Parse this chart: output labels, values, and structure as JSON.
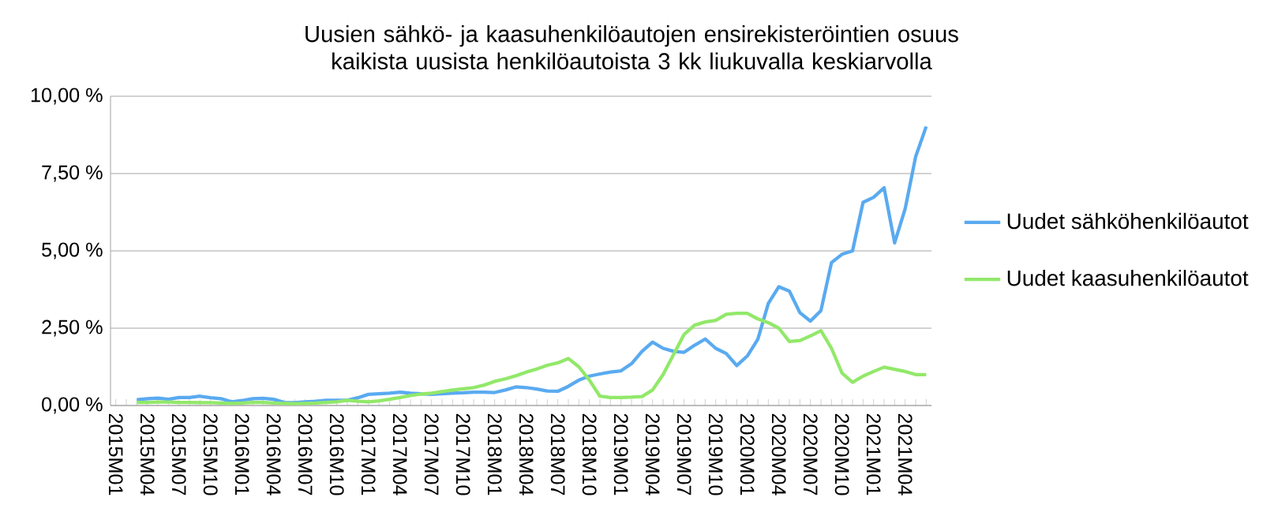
{
  "chart_data": {
    "type": "line",
    "title": "Uusien sähkö- ja kaasuhenkilöautojen ensirekisteröintien osuus kaikista uusista henkilöautoista 3 kk liukuvalla keskiarvolla",
    "categories": [
      "2015M01",
      null,
      null,
      "2015M04",
      null,
      null,
      "2015M07",
      null,
      null,
      "2015M10",
      null,
      null,
      "2016M01",
      null,
      null,
      "2016M04",
      null,
      null,
      "2016M07",
      null,
      null,
      "2016M10",
      null,
      null,
      "2017M01",
      null,
      null,
      "2017M04",
      null,
      null,
      "2017M07",
      null,
      null,
      "2017M10",
      null,
      null,
      "2018M01",
      null,
      null,
      "2018M04",
      null,
      null,
      "2018M07",
      null,
      null,
      "2018M10",
      null,
      null,
      "2019M01",
      null,
      null,
      "2019M04",
      null,
      null,
      "2019M07",
      null,
      null,
      "2019M10",
      null,
      null,
      "2020M01",
      null,
      null,
      "2020M04",
      null,
      null,
      "2020M07",
      null,
      null,
      "2020M10",
      null,
      null,
      "2021M01",
      null,
      null,
      "2021M04",
      null,
      null
    ],
    "series": [
      {
        "name": "Uudet sähköhenkilöautot",
        "color": "#5aaaf0",
        "values": [
          null,
          null,
          0.19,
          0.22,
          0.24,
          0.2,
          0.26,
          0.26,
          0.3,
          0.25,
          0.22,
          0.12,
          0.16,
          0.22,
          0.23,
          0.2,
          0.1,
          0.09,
          0.12,
          0.14,
          0.17,
          0.17,
          0.17,
          0.25,
          0.36,
          0.38,
          0.4,
          0.43,
          0.4,
          0.38,
          0.36,
          0.38,
          0.4,
          0.41,
          0.43,
          0.43,
          0.42,
          0.5,
          0.6,
          0.58,
          0.53,
          0.47,
          0.46,
          0.62,
          0.82,
          0.95,
          1.02,
          1.08,
          1.12,
          1.35,
          1.75,
          2.05,
          1.85,
          1.75,
          1.72,
          1.95,
          2.15,
          1.85,
          1.68,
          1.29,
          1.6,
          2.14,
          3.3,
          3.84,
          3.7,
          3.0,
          2.73,
          3.07,
          4.62,
          4.89,
          5.0,
          6.57,
          6.73,
          7.04,
          5.26,
          6.36,
          8.05,
          9.02
        ]
      },
      {
        "name": "Uudet kaasuhenkilöautot",
        "color": "#92e86a",
        "values": [
          null,
          null,
          0.1,
          0.1,
          0.11,
          0.11,
          0.1,
          0.1,
          0.09,
          0.09,
          0.08,
          0.07,
          0.08,
          0.1,
          0.1,
          0.08,
          0.07,
          0.06,
          0.07,
          0.08,
          0.1,
          0.12,
          0.17,
          0.14,
          0.12,
          0.15,
          0.2,
          0.26,
          0.32,
          0.37,
          0.4,
          0.45,
          0.5,
          0.54,
          0.58,
          0.66,
          0.78,
          0.86,
          0.96,
          1.08,
          1.18,
          1.3,
          1.38,
          1.52,
          1.25,
          0.82,
          0.3,
          0.26,
          0.26,
          0.27,
          0.29,
          0.5,
          1.0,
          1.65,
          2.3,
          2.6,
          2.7,
          2.75,
          2.95,
          2.98,
          2.98,
          2.8,
          2.68,
          2.5,
          2.07,
          2.1,
          2.25,
          2.42,
          1.85,
          1.05,
          0.75,
          0.95,
          1.1,
          1.24,
          1.17,
          1.1,
          1.0,
          1.0
        ]
      }
    ],
    "ylim": [
      0,
      10
    ],
    "yticks": [
      {
        "value": 0,
        "label": "0,00 %"
      },
      {
        "value": 2.5,
        "label": "2,50 %"
      },
      {
        "value": 5,
        "label": "5,00 %"
      },
      {
        "value": 7.5,
        "label": "7,50 %"
      },
      {
        "value": 10,
        "label": "10,00 %"
      }
    ],
    "grid": "y",
    "legend": "right",
    "marker": "none",
    "line_style": "solid"
  }
}
